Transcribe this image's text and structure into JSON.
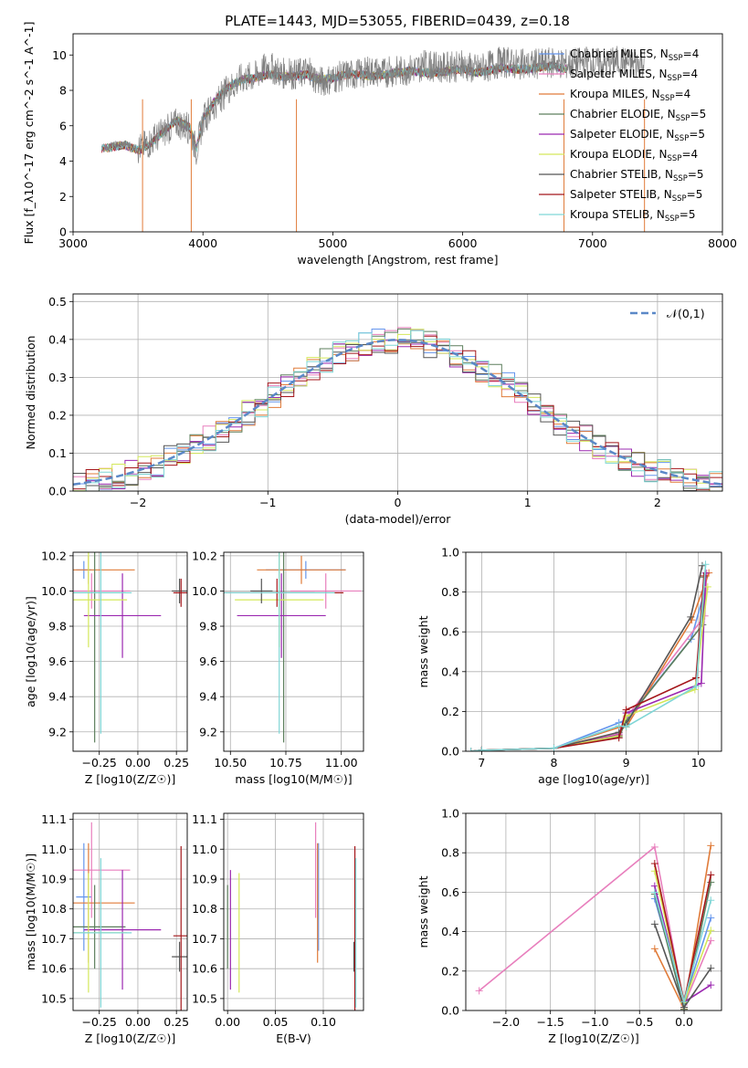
{
  "figure": {
    "title": "PLATE=1443, MJD=53055, FIBERID=0439, z=0.18"
  },
  "series": [
    {
      "name": "Chabrier MILES",
      "nssp": "4",
      "color": "#6495ed"
    },
    {
      "name": "Salpeter MILES",
      "nssp": "4",
      "color": "#e87fbd"
    },
    {
      "name": "Kroupa MILES",
      "nssp": "4",
      "color": "#e07b39"
    },
    {
      "name": "Chabrier ELODIE",
      "nssp": "5",
      "color": "#5d7f5d"
    },
    {
      "name": "Salpeter ELODIE",
      "nssp": "5",
      "color": "#9b28b0"
    },
    {
      "name": "Kroupa ELODIE",
      "nssp": "4",
      "color": "#d4e85a"
    },
    {
      "name": "Chabrier STELIB",
      "nssp": "5",
      "color": "#555555"
    },
    {
      "name": "Salpeter STELIB",
      "nssp": "5",
      "color": "#a4161a"
    },
    {
      "name": "Kroupa STELIB",
      "nssp": "5",
      "color": "#7fd6d6"
    }
  ],
  "chart_data": [
    {
      "id": "spectrum",
      "type": "line",
      "xlabel": "wavelength [Angstrom, rest frame]",
      "ylabel": "Flux [f_λ10^-17 erg cm^-2 s^-1 A^-1]",
      "xlim": [
        3000,
        8000
      ],
      "ylim": [
        0,
        11.2
      ],
      "xticks": [
        3000,
        4000,
        5000,
        6000,
        7000,
        8000
      ],
      "yticks": [
        0,
        2,
        4,
        6,
        8,
        10
      ],
      "data_color": "#808080",
      "legend_placement": "right",
      "data": {
        "x": [
          3220,
          3300,
          3400,
          3500,
          3600,
          3700,
          3800,
          3900,
          3950,
          4000,
          4100,
          4200,
          4300,
          4400,
          4500,
          4600,
          4700,
          4800,
          4900,
          5000,
          5100,
          5200,
          5300,
          5400,
          5500,
          5600,
          5700,
          5800,
          5900,
          6000,
          6100,
          6200,
          6300,
          6400,
          6500,
          6600,
          6700,
          6800,
          6900,
          7000,
          7100,
          7200,
          7300,
          7400
        ],
        "y": [
          4.6,
          4.9,
          5.0,
          4.7,
          5.1,
          5.6,
          6.2,
          5.8,
          4.6,
          6.3,
          7.3,
          8.1,
          8.7,
          8.8,
          9.4,
          9.0,
          8.9,
          9.1,
          8.5,
          8.7,
          8.9,
          8.9,
          9.1,
          9.0,
          9.1,
          9.2,
          9.4,
          9.3,
          9.3,
          9.4,
          9.2,
          9.4,
          9.6,
          9.5,
          9.4,
          9.5,
          9.6,
          9.5,
          9.6,
          9.6,
          9.5,
          9.7,
          9.5,
          9.6
        ]
      },
      "model": {
        "x": [
          3220,
          3300,
          3400,
          3500,
          3600,
          3700,
          3800,
          3900,
          3950,
          4000,
          4100,
          4200,
          4300,
          4400,
          4500,
          4600,
          4700,
          4800,
          4900,
          5000,
          5100,
          5200,
          5300,
          5400,
          5500,
          5600,
          5700,
          5800,
          5900,
          6000,
          6100,
          6200,
          6300,
          6400,
          6500,
          6600,
          6700,
          6800
        ],
        "y": [
          4.7,
          4.8,
          4.9,
          4.6,
          5.0,
          5.7,
          6.3,
          5.9,
          4.7,
          6.4,
          7.5,
          8.2,
          8.6,
          8.7,
          8.9,
          8.8,
          8.8,
          8.9,
          8.6,
          8.7,
          8.9,
          8.9,
          8.8,
          8.9,
          9.0,
          9.1,
          9.0,
          9.0,
          9.1,
          9.2,
          9.0,
          9.1,
          9.3,
          9.2,
          9.2,
          9.3,
          9.4,
          9.2
        ]
      },
      "vertical_drops_x": [
        3535,
        3910,
        4720,
        6780,
        7400
      ]
    },
    {
      "id": "residuals",
      "type": "histogram",
      "xlabel": "(data-model)/error",
      "ylabel": "Normed distribution",
      "xlim": [
        -2.5,
        2.5
      ],
      "ylim": [
        0,
        0.52
      ],
      "xticks": [
        -2,
        -1,
        0,
        1,
        2
      ],
      "yticks": [
        0,
        0.1,
        0.2,
        0.3,
        0.4,
        0.5
      ],
      "bin_width": 0.1,
      "legend": "𝒩(0,1)",
      "gaussian_color": "#5b88c7"
    },
    {
      "id": "age-vs-Z",
      "type": "scatter",
      "xlabel": "Z [log10(Z/Z☉)]",
      "ylabel": "age  [log10(age/yr)]",
      "xlim": [
        -0.42,
        0.32
      ],
      "ylim": [
        9.09,
        10.22
      ],
      "xticks": [
        -0.25,
        0.0,
        0.25
      ],
      "yticks": [
        9.2,
        9.4,
        9.6,
        9.8,
        10.0,
        10.2
      ]
    },
    {
      "id": "age-vs-mass",
      "type": "scatter",
      "xlabel": "mass [log10(M/M☉)]",
      "xlim": [
        10.47,
        11.1
      ],
      "ylim": [
        9.09,
        10.22
      ],
      "xticks": [
        10.5,
        10.75,
        11.0
      ],
      "yticks": [
        9.2,
        9.4,
        9.6,
        9.8,
        10.0,
        10.2
      ]
    },
    {
      "id": "weight-vs-age",
      "type": "line",
      "xlabel": "age  [log10(age/yr)]",
      "ylabel": "mass weight",
      "xlim": [
        6.78,
        10.32
      ],
      "ylim": [
        0,
        1.0
      ],
      "xticks": [
        7,
        8,
        9,
        10
      ],
      "yticks": [
        0,
        0.2,
        0.4,
        0.6,
        0.8,
        1.0
      ]
    },
    {
      "id": "mass-vs-Z",
      "type": "scatter",
      "xlabel": "Z [log10(Z/Z☉)]",
      "ylabel": "mass [log10(M/M☉)]",
      "xlim": [
        -0.42,
        0.32
      ],
      "ylim": [
        10.46,
        11.12
      ],
      "xticks": [
        -0.25,
        0.0,
        0.25
      ],
      "yticks": [
        10.5,
        10.6,
        10.7,
        10.8,
        10.9,
        11.0,
        11.1
      ]
    },
    {
      "id": "mass-vs-ebv",
      "type": "scatter",
      "xlabel": "E(B-V)",
      "xlim": [
        -0.004,
        0.142
      ],
      "ylim": [
        10.46,
        11.12
      ],
      "xticks": [
        0.0,
        0.05,
        0.1
      ],
      "yticks": [
        10.5,
        10.6,
        10.7,
        10.8,
        10.9,
        11.0,
        11.1
      ]
    },
    {
      "id": "weight-vs-Z",
      "type": "line",
      "xlabel": "Z [log10(Z/Z☉)]",
      "ylabel": "mass weight",
      "xlim": [
        -2.45,
        0.42
      ],
      "ylim": [
        0,
        1.0
      ],
      "xticks": [
        -2.0,
        -1.5,
        -1.0,
        -0.5,
        0.0
      ],
      "yticks": [
        0,
        0.2,
        0.4,
        0.6,
        0.8,
        1.0
      ]
    }
  ],
  "ssp_points": [
    {
      "Z": -0.35,
      "age": 10.12,
      "mass": 10.84,
      "ebv": 0.095,
      "ageErr": 0.05,
      "zErr": 0.05,
      "massErr": 0.18
    },
    {
      "Z": -0.3,
      "age": 10.0,
      "mass": 10.93,
      "ebv": 0.092,
      "ageErr": 0.1,
      "zErr": 0.25,
      "massErr": 0.16
    },
    {
      "Z": -0.32,
      "age": 10.12,
      "mass": 10.82,
      "ebv": 0.094,
      "ageErr": 0.08,
      "zErr": 0.3,
      "massErr": 0.2
    },
    {
      "Z": -0.28,
      "age": 9.99,
      "mass": 10.74,
      "ebv": 0.0,
      "ageErr": 0.85,
      "zErr": 0.2,
      "massErr": 0.14
    },
    {
      "Z": -0.1,
      "age": 9.86,
      "mass": 10.73,
      "ebv": 0.003,
      "ageErr": 0.24,
      "zErr": 0.25,
      "massErr": 0.2
    },
    {
      "Z": -0.32,
      "age": 9.95,
      "mass": 10.72,
      "ebv": 0.012,
      "ageErr": 0.27,
      "zErr": 0.25,
      "massErr": 0.2
    },
    {
      "Z": 0.27,
      "age": 10.0,
      "mass": 10.64,
      "ebv": 0.132,
      "ageErr": 0.07,
      "zErr": 0.05,
      "massErr": 0.05
    },
    {
      "Z": 0.28,
      "age": 9.99,
      "mass": 10.71,
      "ebv": 0.133,
      "ageErr": 0.08,
      "zErr": 0.05,
      "massErr": 0.3
    },
    {
      "Z": -0.24,
      "age": 9.99,
      "mass": 10.72,
      "ebv": 0.134,
      "ageErr": 0.8,
      "zErr": 0.2,
      "massErr": 0.25
    }
  ]
}
